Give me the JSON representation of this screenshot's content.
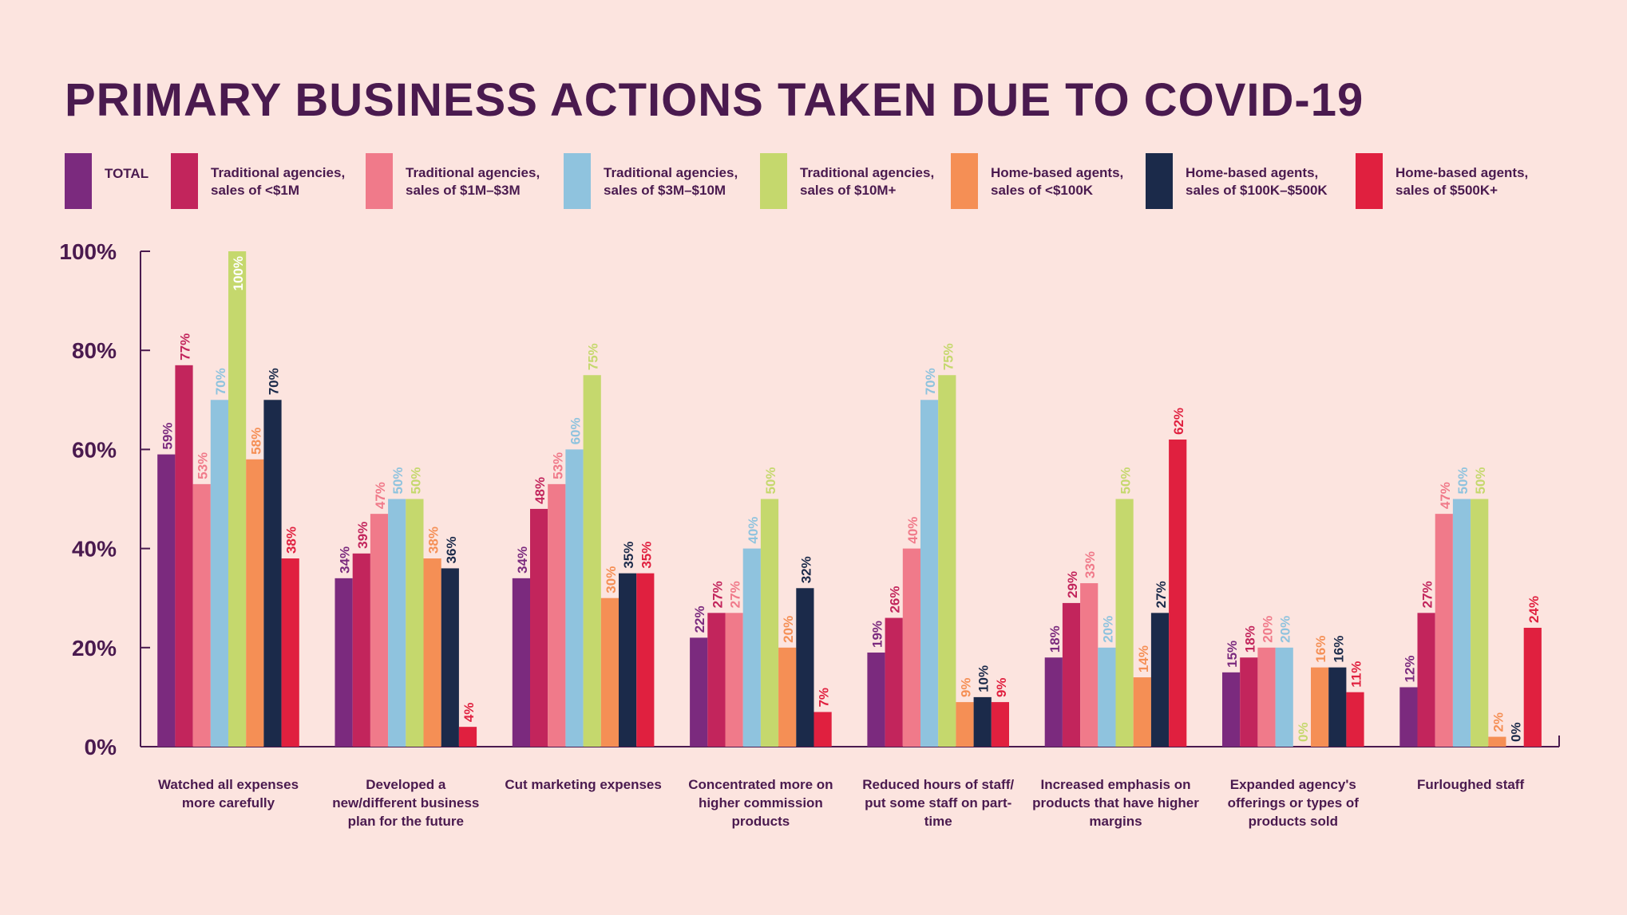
{
  "chart_data": {
    "type": "bar",
    "title": "PRIMARY BUSINESS ACTIONS TAKEN DUE TO COVID-19",
    "categories": [
      "Watched all expenses more carefully",
      "Developed a new/different business plan for the future",
      "Cut marketing expenses",
      "Concentrated more on higher commission products",
      "Reduced hours of staff/ put some staff on part-time",
      "Increased emphasis on products that have higher margins",
      "Expanded agency's offerings or types of products sold",
      "Furloughed staff"
    ],
    "series": [
      {
        "name": "TOTAL",
        "color": "#7b2a7e",
        "values": [
          59,
          34,
          34,
          22,
          19,
          18,
          15,
          12
        ],
        "value_labels": [
          "59%",
          "34%",
          "34%",
          "22%",
          "19%",
          "18%",
          "15%",
          "12%"
        ]
      },
      {
        "name": "Traditional agencies, sales of <$1M",
        "color": "#c2255c",
        "values": [
          77,
          39,
          48,
          27,
          26,
          29,
          18,
          27
        ],
        "value_labels": [
          "77%",
          "39%",
          "48%",
          "27%",
          "26%",
          "29%",
          "18%",
          "27%"
        ]
      },
      {
        "name": "Traditional agencies, sales of $1M–$3M",
        "color": "#f07a8a",
        "values": [
          53,
          47,
          53,
          27,
          40,
          33,
          20,
          47
        ],
        "value_labels": [
          "53%",
          "47%",
          "53%",
          "27%",
          "40%",
          "33%",
          "20%",
          "47%"
        ]
      },
      {
        "name": "Traditional agencies, sales of $3M–$10M",
        "color": "#8fc3de",
        "values": [
          70,
          50,
          60,
          40,
          70,
          20,
          20,
          50
        ],
        "value_labels": [
          "70%",
          "50%",
          "60%",
          "40%",
          "70%",
          "20%",
          "20%",
          "50%"
        ]
      },
      {
        "name": "Traditional agencies, sales of $10M+",
        "color": "#c5d86d",
        "values": [
          100,
          50,
          75,
          50,
          75,
          50,
          0,
          50
        ],
        "value_labels": [
          "100%",
          "50%",
          "75%",
          "50%",
          "75%",
          "50%",
          "0%",
          "50%"
        ]
      },
      {
        "name": "Home-based agents, sales of <$100K",
        "color": "#f58f55",
        "values": [
          58,
          38,
          30,
          20,
          9,
          14,
          16,
          2
        ],
        "value_labels": [
          "58%",
          "38%",
          "30%",
          "20%",
          "9%",
          "14%",
          "16%",
          "2%"
        ]
      },
      {
        "name": "Home-based agents, sales of $100K–$500K",
        "color": "#1b2a4a",
        "values": [
          70,
          36,
          35,
          32,
          10,
          27,
          16,
          0
        ],
        "value_labels": [
          "70%",
          "36%",
          "35%",
          "32%",
          "10%",
          "27%",
          "16%",
          "0%"
        ]
      },
      {
        "name": "Home-based agents, sales of $500K+",
        "color": "#e0203f",
        "values": [
          38,
          4,
          35,
          7,
          9,
          62,
          11,
          24
        ],
        "value_labels": [
          "38%",
          "4%",
          "35%",
          "7%",
          "9%",
          "62%",
          "11%",
          "24%"
        ]
      }
    ],
    "ylim": [
      0,
      100
    ],
    "yticks": [
      {
        "value": 0,
        "label": "0%"
      },
      {
        "value": 20,
        "label": "20%"
      },
      {
        "value": 40,
        "label": "40%"
      },
      {
        "value": 60,
        "label": "60%"
      },
      {
        "value": 80,
        "label": "80%"
      },
      {
        "value": 100,
        "label": "100%"
      }
    ]
  }
}
